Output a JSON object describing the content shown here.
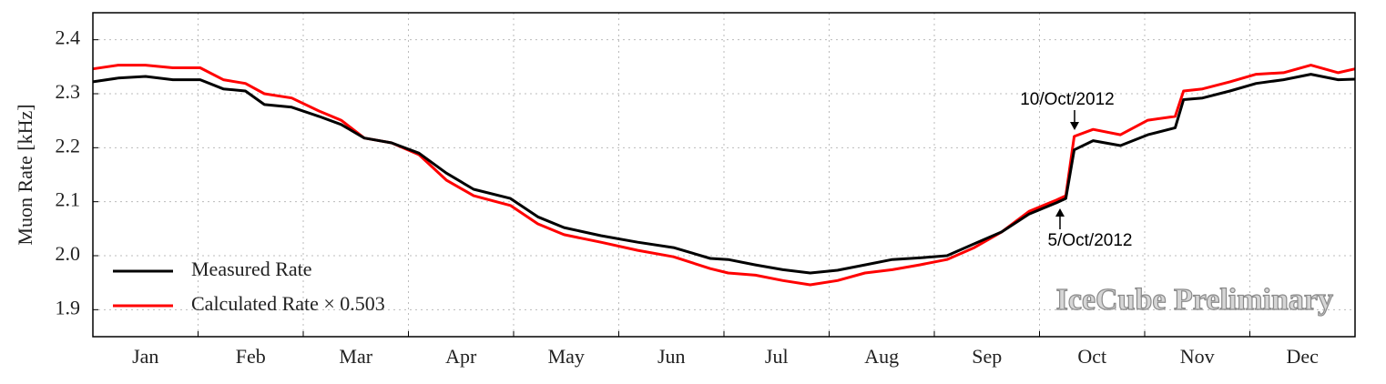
{
  "chart_data": {
    "type": "line",
    "y_label": "Muon Rate [kHz]",
    "categories": [
      "Jan",
      "Feb",
      "Mar",
      "Apr",
      "May",
      "Jun",
      "Jul",
      "Aug",
      "Sep",
      "Oct",
      "Nov",
      "Dec"
    ],
    "x": [
      0,
      0.24,
      0.5,
      0.76,
      1.02,
      1.24,
      1.45,
      1.63,
      1.89,
      2.15,
      2.36,
      2.58,
      2.84,
      3.1,
      3.36,
      3.62,
      3.97,
      4.23,
      4.48,
      4.83,
      5.18,
      5.52,
      5.87,
      6.04,
      6.3,
      6.56,
      6.82,
      7.08,
      7.34,
      7.6,
      7.86,
      8.12,
      8.38,
      8.64,
      8.9,
      9.16,
      9.25,
      9.33,
      9.51,
      9.77,
      10.03,
      10.29,
      10.37,
      10.55,
      10.81,
      11.06,
      11.32,
      11.58,
      11.84,
      12
    ],
    "xlim": [
      0,
      12
    ],
    "series": [
      {
        "name": "Measured Rate",
        "color": "#000000",
        "values": [
          2.322,
          2.329,
          2.332,
          2.326,
          2.326,
          2.309,
          2.305,
          2.28,
          2.275,
          2.258,
          2.243,
          2.218,
          2.209,
          2.19,
          2.153,
          2.123,
          2.106,
          2.072,
          2.052,
          2.037,
          2.025,
          2.015,
          1.995,
          1.993,
          1.983,
          1.974,
          1.968,
          1.973,
          1.983,
          1.993,
          1.996,
          2.0,
          2.022,
          2.044,
          2.077,
          2.098,
          2.106,
          2.196,
          2.213,
          2.204,
          2.224,
          2.237,
          2.289,
          2.292,
          2.305,
          2.319,
          2.326,
          2.336,
          2.326,
          2.327
        ]
      },
      {
        "name": "Calculated Rate × 0.503",
        "color": "#ff0000",
        "values": [
          2.346,
          2.353,
          2.353,
          2.348,
          2.348,
          2.326,
          2.319,
          2.3,
          2.292,
          2.268,
          2.251,
          2.218,
          2.209,
          2.187,
          2.14,
          2.111,
          2.093,
          2.059,
          2.039,
          2.025,
          2.01,
          1.998,
          1.976,
          1.968,
          1.964,
          1.954,
          1.946,
          1.954,
          1.968,
          1.974,
          1.983,
          1.993,
          2.015,
          2.044,
          2.082,
          2.103,
          2.111,
          2.221,
          2.234,
          2.224,
          2.251,
          2.258,
          2.305,
          2.309,
          2.322,
          2.336,
          2.339,
          2.353,
          2.339,
          2.346
        ]
      }
    ],
    "ylim": [
      1.85,
      2.45
    ],
    "yticks": [
      1.9,
      {
        "value": 2,
        "label": "2.0"
      },
      2.1,
      2.2,
      2.3,
      2.4
    ],
    "grid": true,
    "legend": "lower left",
    "annotations": [
      "10/Oct/2012",
      "5/Oct/2012"
    ],
    "watermark": "IceCube Preliminary"
  }
}
